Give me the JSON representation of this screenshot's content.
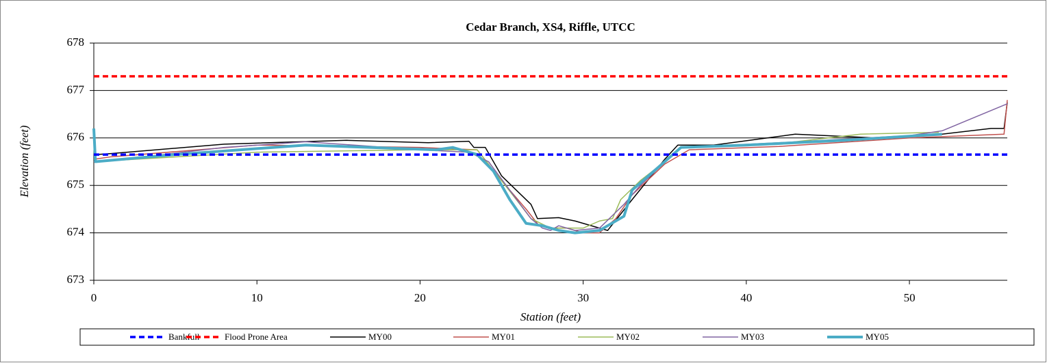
{
  "chart_data": {
    "type": "line",
    "title": "Cedar Branch, XS4, Riffle, UTCC",
    "x_label": "Station (feet)",
    "y_label": "Elevation (feet)",
    "xlim": [
      0,
      56
    ],
    "ylim": [
      673,
      678
    ],
    "xticks": [
      0,
      10,
      20,
      30,
      40,
      50
    ],
    "yticks": [
      673,
      674,
      675,
      676,
      677,
      678
    ],
    "grid": true,
    "legend": "bottom",
    "series": [
      {
        "name": "Bankfull",
        "color": "#0000ff",
        "dashed": true,
        "line_width": 3.5,
        "x": [
          0,
          56
        ],
        "values": [
          675.65,
          675.65
        ]
      },
      {
        "name": "Flood Prone Area",
        "color": "#ff0000",
        "dashed": true,
        "line_width": 3.5,
        "x": [
          0,
          56
        ],
        "values": [
          677.3,
          677.3
        ]
      },
      {
        "name": "MY00",
        "color": "#000000",
        "dashed": false,
        "line_width": 1.5,
        "x": [
          0,
          0.1,
          1,
          8,
          15.5,
          20.5,
          23,
          23.3,
          24,
          25,
          26.8,
          27.2,
          28.5,
          29.5,
          31.5,
          33,
          35,
          35.8,
          38,
          43,
          48,
          52,
          55,
          55.8,
          56
        ],
        "values": [
          675.6,
          675.65,
          675.67,
          675.87,
          675.95,
          675.9,
          675.93,
          675.8,
          675.8,
          675.2,
          674.6,
          674.3,
          674.32,
          674.25,
          674.05,
          674.7,
          675.55,
          675.85,
          675.85,
          676.08,
          676.0,
          676.08,
          676.2,
          676.2,
          676.75
        ]
      },
      {
        "name": "MY01",
        "color": "#c0504d",
        "dashed": false,
        "line_width": 1.5,
        "x": [
          0,
          1,
          10,
          20,
          23.5,
          25,
          26.5,
          27.3,
          28,
          29,
          30,
          31,
          32,
          33,
          35,
          36.5,
          42,
          50,
          55.8,
          56
        ],
        "values": [
          675.55,
          675.6,
          675.85,
          675.8,
          675.75,
          675.1,
          674.5,
          674.15,
          674.1,
          674.1,
          674.0,
          674.0,
          674.3,
          674.8,
          675.45,
          675.75,
          675.82,
          676.0,
          676.08,
          676.8
        ]
      },
      {
        "name": "MY02",
        "color": "#9bbb59",
        "dashed": false,
        "line_width": 1.5,
        "x": [
          0,
          5,
          10,
          20,
          23.5,
          25,
          26.8,
          28,
          30,
          31,
          31.8,
          32.3,
          33.5,
          35,
          36,
          42,
          47,
          51.8
        ],
        "values": [
          675.5,
          675.6,
          675.7,
          675.75,
          675.75,
          675.1,
          674.3,
          674.1,
          674.1,
          674.25,
          674.3,
          674.7,
          675.1,
          675.5,
          675.8,
          675.88,
          676.08,
          676.12
        ]
      },
      {
        "name": "MY03",
        "color": "#8064a2",
        "dashed": false,
        "line_width": 1.5,
        "x": [
          0,
          3,
          8,
          13,
          20,
          23,
          24.2,
          25.5,
          26.8,
          27.5,
          28,
          28.5,
          29.5,
          31,
          32.5,
          33.5,
          35.2,
          36,
          42,
          50,
          52,
          56
        ],
        "values": [
          675.5,
          675.6,
          675.8,
          675.92,
          675.75,
          675.7,
          675.5,
          674.9,
          674.3,
          674.1,
          674.05,
          674.15,
          674.05,
          674.1,
          674.6,
          675.0,
          675.55,
          675.8,
          675.9,
          676.05,
          676.15,
          676.72
        ]
      },
      {
        "name": "MY05",
        "color": "#4bacc6",
        "dashed": false,
        "line_width": 4,
        "x": [
          0,
          0.1,
          5,
          13,
          21,
          22,
          23.5,
          24.5,
          25.5,
          26.5,
          27.5,
          28.5,
          29.5,
          31,
          32.5,
          33,
          35,
          36,
          40,
          46,
          52
        ],
        "values": [
          676.2,
          675.5,
          675.65,
          675.85,
          675.75,
          675.8,
          675.65,
          675.3,
          674.7,
          674.2,
          674.15,
          674.05,
          674.0,
          674.05,
          674.35,
          674.9,
          675.5,
          675.8,
          675.85,
          675.95,
          676.08
        ]
      }
    ]
  }
}
